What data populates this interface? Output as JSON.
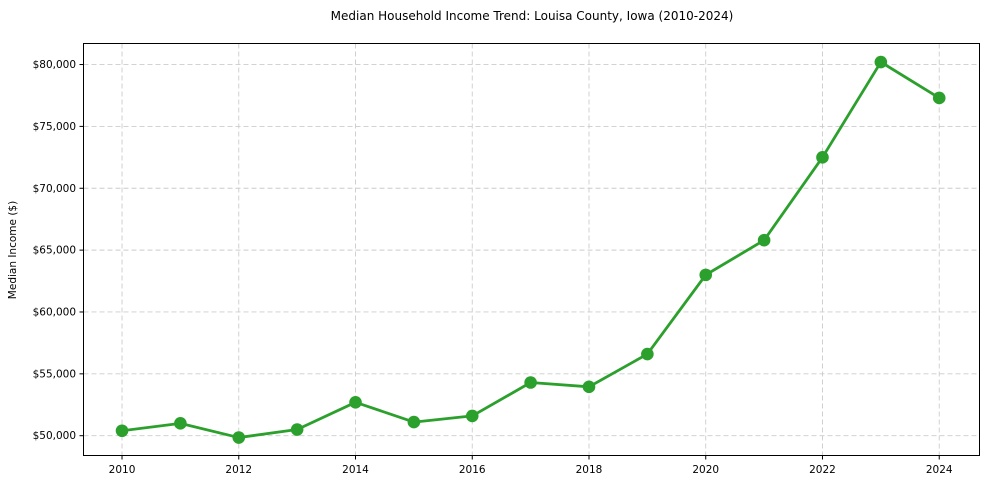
{
  "chart_data": {
    "type": "line",
    "title": "Median Household Income Trend: Louisa County, Iowa (2010-2024)",
    "xlabel": "",
    "ylabel": "Median Income ($)",
    "x": [
      2010,
      2011,
      2012,
      2013,
      2014,
      2015,
      2016,
      2017,
      2018,
      2019,
      2020,
      2021,
      2022,
      2023,
      2024
    ],
    "series": [
      {
        "name": "Median Household Income",
        "color": "#2ca02c",
        "values": [
          50400,
          51000,
          49850,
          50500,
          52700,
          51100,
          51600,
          54300,
          53950,
          56600,
          63000,
          65800,
          72500,
          80200,
          77300
        ]
      }
    ],
    "xlim": [
      2009.34,
      2024.69
    ],
    "ylim": [
      48400,
      81700
    ],
    "x_ticks": [
      2010,
      2012,
      2014,
      2016,
      2018,
      2020,
      2022,
      2024
    ],
    "x_tick_labels": [
      "2010",
      "2012",
      "2014",
      "2016",
      "2018",
      "2020",
      "2022",
      "2024"
    ],
    "y_ticks": [
      50000,
      55000,
      60000,
      65000,
      70000,
      75000,
      80000
    ],
    "y_tick_labels": [
      "$50,000",
      "$55,000",
      "$60,000",
      "$65,000",
      "$70,000",
      "$75,000",
      "$80,000"
    ],
    "grid": true,
    "grid_style": "dashed",
    "grid_color": "#cccccc",
    "axis_color": "#000000",
    "text_color": "#000000",
    "background_color": "#ffffff",
    "legend": "none",
    "marker": "circle"
  }
}
